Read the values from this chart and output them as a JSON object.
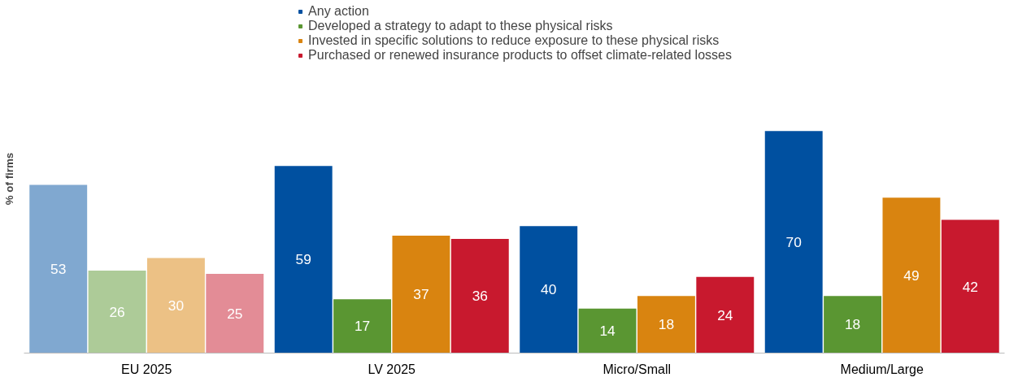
{
  "chart_data": {
    "type": "bar",
    "ylabel": "% of firms",
    "categories": [
      "EU 2025",
      "LV 2025",
      "Micro/Small",
      "Medium/Large"
    ],
    "series": [
      {
        "name": "Any action",
        "color": "#0050a0",
        "colors": [
          "#80a8d0",
          "#0050a0",
          "#0050a0",
          "#0050a0"
        ],
        "values": [
          53,
          59,
          40,
          70
        ]
      },
      {
        "name": "Developed a strategy to adapt to these physical risks",
        "color": "#5a9632",
        "colors": [
          "#adcb98",
          "#5a9632",
          "#5a9632",
          "#5a9632"
        ],
        "values": [
          26,
          17,
          14,
          18
        ]
      },
      {
        "name": "Invested in specific solutions to reduce exposure to these physical risks",
        "color": "#d98410",
        "colors": [
          "#ecc185",
          "#d98410",
          "#d98410",
          "#d98410"
        ],
        "values": [
          30,
          37,
          18,
          49
        ]
      },
      {
        "name": "Purchased or renewed insurance products to offset climate-related losses",
        "color": "#c8192e",
        "colors": [
          "#e38c96",
          "#c8192e",
          "#c8192e",
          "#c8192e"
        ],
        "values": [
          25,
          36,
          24,
          42
        ]
      }
    ],
    "data_labels": true,
    "legend": "top",
    "grid": false
  }
}
